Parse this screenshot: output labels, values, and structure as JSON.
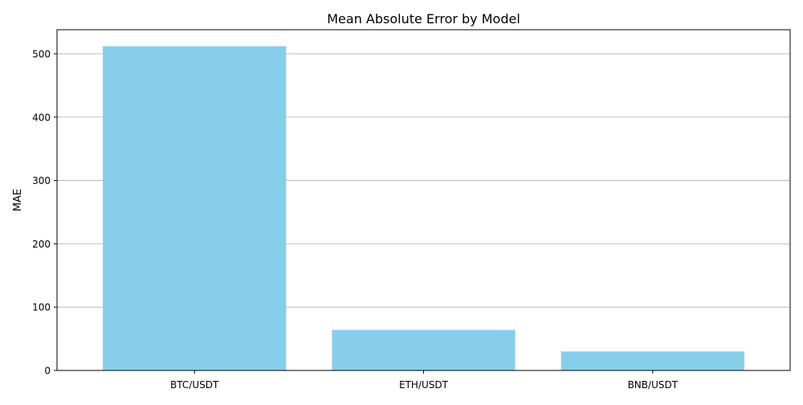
{
  "chart_data": {
    "type": "bar",
    "title": "Mean Absolute Error by Model",
    "xlabel": "",
    "ylabel": "MAE",
    "categories": [
      "BTC/USDT",
      "ETH/USDT",
      "BNB/USDT"
    ],
    "values": [
      512,
      64,
      30
    ],
    "ylim": [
      0,
      538
    ],
    "yticks": [
      0,
      100,
      200,
      300,
      400,
      500
    ],
    "grid": "y",
    "bar_color": "#87ceeb",
    "grid_color": "#b0b0b0"
  }
}
